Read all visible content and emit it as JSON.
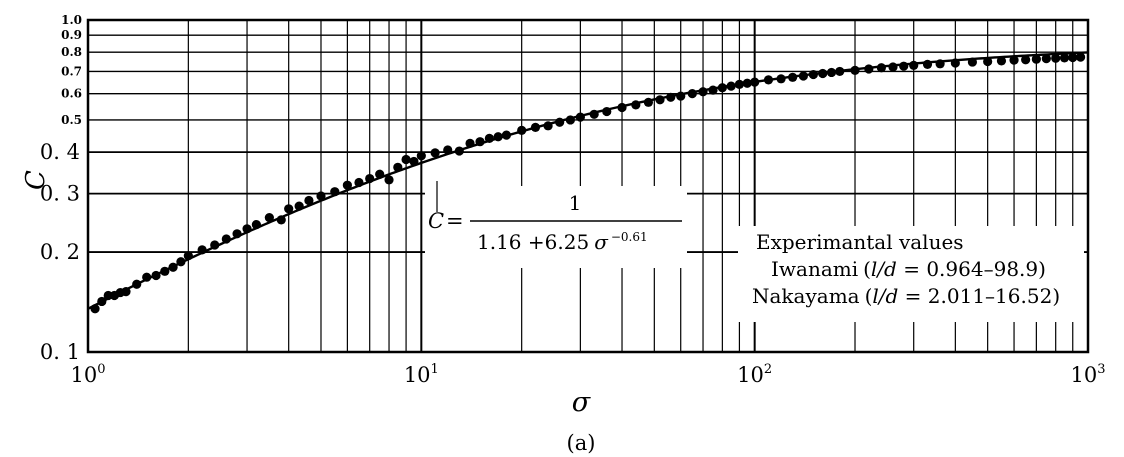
{
  "chart_data": {
    "type": "scatter",
    "xlabel": "σ",
    "ylabel": "C",
    "caption": "(a)",
    "x_scale": "log",
    "y_scale": "log",
    "xlim": [
      1,
      1000
    ],
    "ylim": [
      0.1,
      1.0
    ],
    "grid": true,
    "x_ticks": [
      {
        "value": 1,
        "base": "10",
        "exp": "0"
      },
      {
        "value": 10,
        "base": "10",
        "exp": "1"
      },
      {
        "value": 100,
        "base": "10",
        "exp": "2"
      },
      {
        "value": 1000,
        "base": "10",
        "exp": "3"
      }
    ],
    "y_ticks": [
      {
        "value": 0.1,
        "label": "0. 1",
        "size": "major"
      },
      {
        "value": 0.2,
        "label": "0. 2",
        "size": "major"
      },
      {
        "value": 0.3,
        "label": "0. 3",
        "size": "major"
      },
      {
        "value": 0.4,
        "label": "0. 4",
        "size": "major"
      },
      {
        "value": 0.5,
        "label": "0.5",
        "size": "minor"
      },
      {
        "value": 0.6,
        "label": "0.6",
        "size": "minor"
      },
      {
        "value": 0.7,
        "label": "0.7",
        "size": "minor"
      },
      {
        "value": 0.8,
        "label": "0.8",
        "size": "minor"
      },
      {
        "value": 0.9,
        "label": "0.9",
        "size": "minor"
      },
      {
        "value": 1.0,
        "label": "1.0",
        "size": "minor"
      }
    ],
    "formula": {
      "lhs": "C",
      "equals": "=",
      "numerator": "1",
      "denominator_main": "1.16 +6.25",
      "denominator_var": "σ",
      "denominator_exp": "−0.61"
    },
    "legend": {
      "title": "Experimantal values",
      "entries": [
        {
          "name": "Iwanami",
          "open": "(",
          "var": "l/d",
          "range": " = 0.964–98.9)"
        },
        {
          "name": "Nakayama",
          "open": "(",
          "var": "l/d",
          "range": " = 2.011–16.52)"
        }
      ]
    },
    "curve": {
      "name": "C = 1/(1.16 + 6.25 σ^−0.61)",
      "a": 1.16,
      "b": 6.25,
      "exponent": -0.61,
      "x_range": [
        1,
        1000
      ]
    },
    "series": [
      {
        "x": [
          1.05,
          1.1,
          1.15,
          1.2,
          1.25,
          1.3,
          1.4,
          1.5,
          1.6,
          1.7,
          1.8,
          1.9,
          2.0,
          2.2,
          2.4,
          2.6,
          2.8,
          3.0,
          3.2,
          3.5,
          3.8,
          4.0,
          4.3,
          4.6,
          5.0,
          5.5,
          6.0,
          6.5,
          7.0,
          7.5,
          8.0,
          8.5,
          9.0,
          9.5,
          10,
          11,
          12,
          13,
          14,
          15,
          16,
          17,
          18,
          20,
          22,
          24,
          26,
          28,
          30,
          33,
          36,
          40,
          44,
          48,
          52,
          56,
          60,
          65,
          70,
          75,
          80,
          85,
          90,
          95,
          100,
          110,
          120,
          130,
          140,
          150,
          160,
          170,
          180,
          200,
          220,
          240,
          260,
          280,
          300,
          330,
          360,
          400,
          450,
          500,
          550,
          600,
          650,
          700,
          750,
          800,
          850,
          900,
          950
        ],
        "y": [
          0.135,
          0.142,
          0.148,
          0.148,
          0.151,
          0.152,
          0.16,
          0.168,
          0.17,
          0.175,
          0.18,
          0.187,
          0.195,
          0.203,
          0.21,
          0.219,
          0.227,
          0.235,
          0.242,
          0.254,
          0.25,
          0.27,
          0.275,
          0.286,
          0.295,
          0.304,
          0.318,
          0.324,
          0.333,
          0.343,
          0.33,
          0.36,
          0.38,
          0.375,
          0.39,
          0.398,
          0.406,
          0.403,
          0.425,
          0.43,
          0.44,
          0.445,
          0.45,
          0.465,
          0.475,
          0.48,
          0.492,
          0.5,
          0.51,
          0.52,
          0.53,
          0.545,
          0.555,
          0.565,
          0.575,
          0.585,
          0.59,
          0.6,
          0.608,
          0.615,
          0.625,
          0.632,
          0.64,
          0.645,
          0.65,
          0.66,
          0.665,
          0.672,
          0.678,
          0.685,
          0.69,
          0.695,
          0.7,
          0.705,
          0.712,
          0.718,
          0.722,
          0.726,
          0.73,
          0.735,
          0.738,
          0.742,
          0.747,
          0.75,
          0.753,
          0.757,
          0.759,
          0.762,
          0.765,
          0.767,
          0.769,
          0.771,
          0.773
        ]
      }
    ]
  }
}
